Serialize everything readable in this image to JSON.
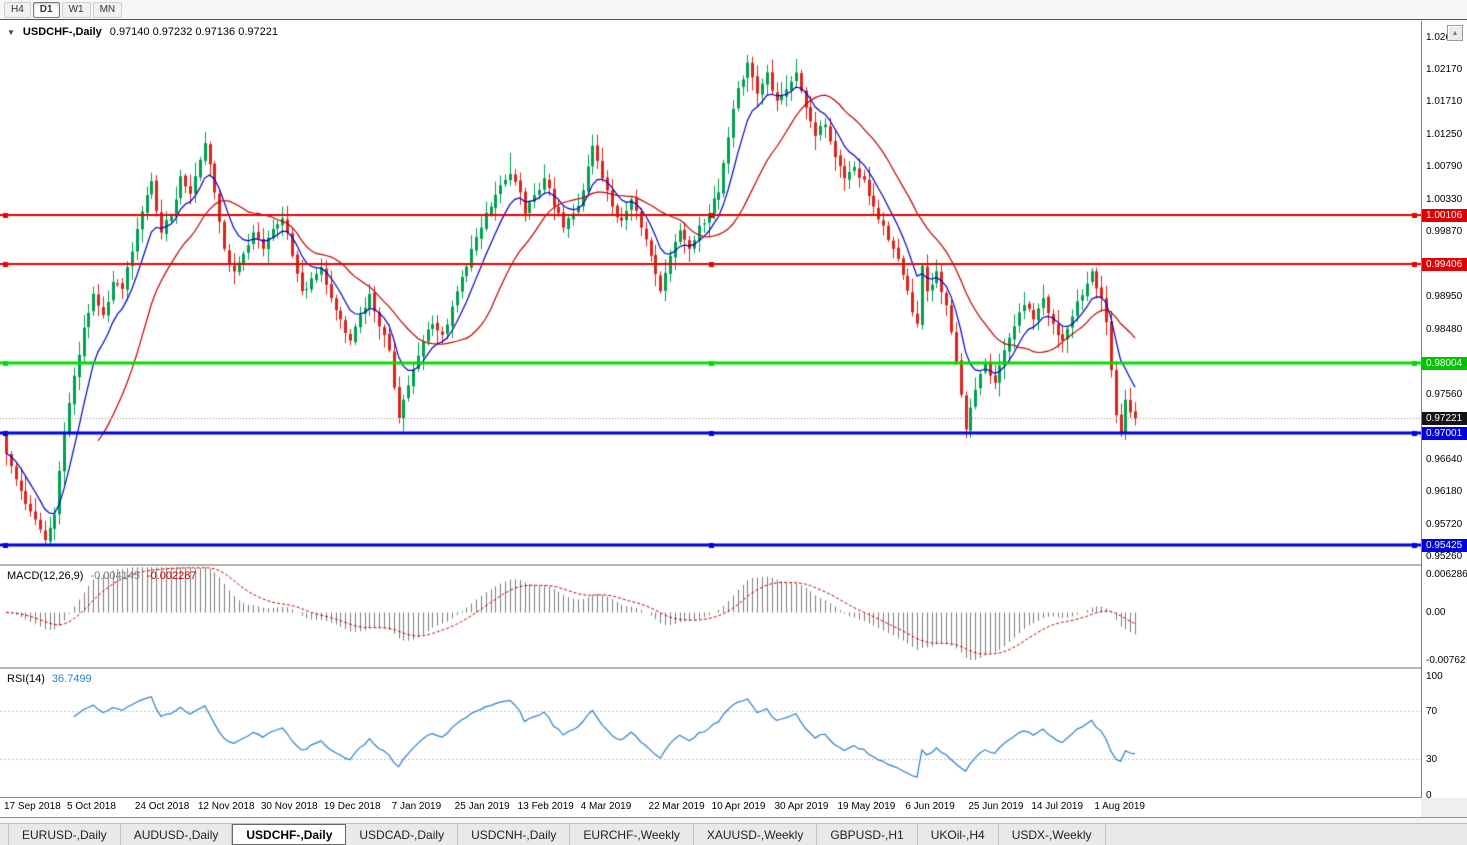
{
  "toolbar": {
    "buttons": [
      {
        "label": "H4",
        "active": false
      },
      {
        "label": "D1",
        "active": true
      },
      {
        "label": "W1",
        "active": false
      },
      {
        "label": "MN",
        "active": false
      }
    ]
  },
  "chart": {
    "title": "USDCHF-,Daily",
    "ohlc_text": "0.97140 0.97232 0.97136 0.97221",
    "collapse_icon": "▼"
  },
  "price_axis": {
    "ticks": [
      {
        "text": "1.02630",
        "price": 1.0263
      },
      {
        "text": "1.02170",
        "price": 1.0217
      },
      {
        "text": "1.01710",
        "price": 1.0171
      },
      {
        "text": "1.01250",
        "price": 1.0125
      },
      {
        "text": "1.00790",
        "price": 1.0079
      },
      {
        "text": "1.00330",
        "price": 1.0033
      },
      {
        "text": "0.99870",
        "price": 0.9987
      },
      {
        "text": "0.98950",
        "price": 0.9895
      },
      {
        "text": "0.98480",
        "price": 0.9848
      },
      {
        "text": "0.97560",
        "price": 0.9756
      },
      {
        "text": "0.96640",
        "price": 0.9664
      },
      {
        "text": "0.96180",
        "price": 0.9618
      },
      {
        "text": "0.95720",
        "price": 0.9572
      },
      {
        "text": "0.95260",
        "price": 0.9526
      }
    ],
    "badges": [
      {
        "text": "1.00106",
        "price": 1.00106,
        "bg": "#e00000"
      },
      {
        "text": "0.99406",
        "price": 0.99406,
        "bg": "#e00000"
      },
      {
        "text": "0.98004",
        "price": 0.98004,
        "bg": "#00c300"
      },
      {
        "text": "0.97221",
        "price": 0.97221,
        "bg": "#141414"
      },
      {
        "text": "0.97001",
        "price": 0.97001,
        "bg": "#0000dd"
      },
      {
        "text": "0.95425",
        "price": 0.95425,
        "bg": "#0000dd"
      }
    ]
  },
  "macd_panel": {
    "label": "MACD(12,26,9)",
    "value_main": "-0.004145",
    "value_signal": "-0.002287",
    "axis": [
      {
        "text": "0.006286",
        "value": 0.006286
      },
      {
        "text": "0.00",
        "value": 0
      },
      {
        "text": "-0.00762",
        "value": -0.00762
      }
    ]
  },
  "rsi_panel": {
    "label": "RSI(14)",
    "value": "36.7499",
    "axis": [
      {
        "text": "100",
        "value": 100
      },
      {
        "text": "70",
        "value": 70
      },
      {
        "text": "30",
        "value": 30
      },
      {
        "text": "0",
        "value": 0
      }
    ]
  },
  "date_axis": {
    "labels": [
      "17 Sep 2018",
      "5 Oct 2018",
      "24 Oct 2018",
      "12 Nov 2018",
      "30 Nov 2018",
      "19 Dec 2018",
      "7 Jan 2019",
      "25 Jan 2019",
      "13 Feb 2019",
      "4 Mar 2019",
      "22 Mar 2019",
      "10 Apr 2019",
      "30 Apr 2019",
      "19 May 2019",
      "6 Jun 2019",
      "25 Jun 2019",
      "14 Jul 2019",
      "1 Aug 2019"
    ]
  },
  "tabs": {
    "active_index": 2,
    "items": [
      "EURUSD-,Daily",
      "AUDUSD-,Daily",
      "USDCHF-,Daily",
      "USDCAD-,Daily",
      "USDCNH-,Daily",
      "EURCHF-,Weekly",
      "XAUUSD-,Weekly",
      "GBPUSD-,H1",
      "UKOil-,H4",
      "USDX-,Weekly"
    ]
  },
  "chart_data": {
    "type": "candlestick",
    "symbol": "USDCHF-",
    "timeframe": "Daily",
    "current_ohlc": {
      "open": 0.9714,
      "high": 0.97232,
      "low": 0.97136,
      "close": 0.97221
    },
    "x_range": [
      "17 Sep 2018",
      "9 Aug 2019"
    ],
    "price_max": 1.0285,
    "price_min": 0.9515,
    "candles": 234,
    "x0": 6,
    "step": 4.846,
    "seed": 11,
    "noise": 0.0013,
    "bull_color": "#00a050",
    "bear_color": "#d9251d",
    "ma_fast": {
      "period": 8,
      "type": "ema",
      "color": "#0000c8"
    },
    "ma_slow": {
      "period": 20,
      "type": "sma",
      "color": "#c00000"
    },
    "bid_line": {
      "price": 0.97221,
      "color": "#8a8a8a"
    },
    "hlines": [
      {
        "price": 1.00106,
        "color": "#ee0000",
        "width": 2
      },
      {
        "price": 0.99406,
        "color": "#ee0000",
        "width": 2
      },
      {
        "price": 0.98004,
        "color": "#00dd00",
        "width": 3
      },
      {
        "price": 0.97001,
        "color": "#0000ee",
        "width": 3
      },
      {
        "price": 0.95425,
        "color": "#0000ee",
        "width": 3
      }
    ],
    "close_waypoints": [
      [
        0,
        0.9672
      ],
      [
        2,
        0.9635
      ],
      [
        4,
        0.96
      ],
      [
        6,
        0.9578
      ],
      [
        8,
        0.9549
      ],
      [
        10,
        0.9585
      ],
      [
        12,
        0.97
      ],
      [
        14,
        0.9782
      ],
      [
        16,
        0.985
      ],
      [
        18,
        0.9898
      ],
      [
        20,
        0.9868
      ],
      [
        22,
        0.9915
      ],
      [
        24,
        0.9905
      ],
      [
        26,
        0.9958
      ],
      [
        28,
        1.0015
      ],
      [
        30,
        1.0058
      ],
      [
        32,
        0.9985
      ],
      [
        34,
        1.0008
      ],
      [
        36,
        1.0065
      ],
      [
        38,
        1.004
      ],
      [
        40,
        1.0088
      ],
      [
        41,
        1.0112
      ],
      [
        43,
        1.0042
      ],
      [
        45,
        0.9962
      ],
      [
        47,
        0.993
      ],
      [
        49,
        0.9955
      ],
      [
        51,
        0.9985
      ],
      [
        53,
        0.9962
      ],
      [
        55,
        0.999
      ],
      [
        57,
        1.0005
      ],
      [
        59,
        0.9952
      ],
      [
        61,
        0.9902
      ],
      [
        63,
        0.992
      ],
      [
        65,
        0.9935
      ],
      [
        67,
        0.9892
      ],
      [
        69,
        0.9862
      ],
      [
        71,
        0.9832
      ],
      [
        73,
        0.9868
      ],
      [
        75,
        0.9898
      ],
      [
        77,
        0.9852
      ],
      [
        79,
        0.9818
      ],
      [
        80,
        0.9765
      ],
      [
        81,
        0.9722
      ],
      [
        82,
        0.9748
      ],
      [
        84,
        0.979
      ],
      [
        86,
        0.983
      ],
      [
        88,
        0.9855
      ],
      [
        90,
        0.984
      ],
      [
        92,
        0.988
      ],
      [
        94,
        0.9922
      ],
      [
        96,
        0.9962
      ],
      [
        98,
        0.9992
      ],
      [
        100,
        1.0022
      ],
      [
        102,
        1.0052
      ],
      [
        104,
        1.0068
      ],
      [
        106,
        1.0042
      ],
      [
        107,
        1.0012
      ],
      [
        109,
        1.0038
      ],
      [
        111,
        1.0062
      ],
      [
        113,
        1.0022
      ],
      [
        115,
        0.9992
      ],
      [
        117,
        1.0012
      ],
      [
        119,
        1.0045
      ],
      [
        121,
        1.0108
      ],
      [
        123,
        1.0062
      ],
      [
        125,
        1.0022
      ],
      [
        127,
        1.0002
      ],
      [
        129,
        1.0032
      ],
      [
        131,
        0.9992
      ],
      [
        133,
        0.9952
      ],
      [
        135,
        0.9902
      ],
      [
        137,
        0.9952
      ],
      [
        139,
        0.9988
      ],
      [
        141,
        0.9962
      ],
      [
        143,
        0.9995
      ],
      [
        145,
        1.0012
      ],
      [
        147,
        1.0042
      ],
      [
        149,
        1.012
      ],
      [
        151,
        1.019
      ],
      [
        153,
        1.0226
      ],
      [
        155,
        1.0182
      ],
      [
        157,
        1.0212
      ],
      [
        159,
        1.0172
      ],
      [
        161,
        1.0188
      ],
      [
        163,
        1.0212
      ],
      [
        165,
        1.0162
      ],
      [
        167,
        1.0122
      ],
      [
        169,
        1.0138
      ],
      [
        171,
        1.0092
      ],
      [
        173,
        1.0062
      ],
      [
        175,
        1.0078
      ],
      [
        177,
        1.006
      ],
      [
        179,
        1.0022
      ],
      [
        181,
        0.9995
      ],
      [
        183,
        0.9962
      ],
      [
        185,
        0.9925
      ],
      [
        187,
        0.9872
      ],
      [
        188,
        0.9856
      ],
      [
        189,
        0.9938
      ],
      [
        190,
        0.9902
      ],
      [
        192,
        0.993
      ],
      [
        194,
        0.9882
      ],
      [
        196,
        0.9802
      ],
      [
        198,
        0.9706
      ],
      [
        200,
        0.9762
      ],
      [
        202,
        0.98
      ],
      [
        204,
        0.9772
      ],
      [
        206,
        0.9818
      ],
      [
        208,
        0.9852
      ],
      [
        210,
        0.9882
      ],
      [
        212,
        0.9862
      ],
      [
        214,
        0.9892
      ],
      [
        216,
        0.9856
      ],
      [
        218,
        0.9832
      ],
      [
        220,
        0.9866
      ],
      [
        222,
        0.9896
      ],
      [
        224,
        0.993
      ],
      [
        226,
        0.9892
      ],
      [
        227,
        0.9858
      ],
      [
        228,
        0.979
      ],
      [
        229,
        0.9726
      ],
      [
        230,
        0.9702
      ],
      [
        231,
        0.9748
      ],
      [
        232,
        0.973
      ],
      [
        233,
        0.97221
      ]
    ],
    "wick_overrides": [
      [
        8,
        "low",
        0.95425
      ],
      [
        41,
        "high",
        1.0128
      ],
      [
        81,
        "low",
        0.9714
      ],
      [
        104,
        "high",
        1.0098
      ],
      [
        121,
        "high",
        1.0124
      ],
      [
        153,
        "high",
        1.0237
      ],
      [
        189,
        "high",
        0.9942
      ],
      [
        198,
        "low",
        0.9693
      ],
      [
        230,
        "low",
        0.9695
      ]
    ],
    "date_tick_indices": [
      0,
      13,
      27,
      40,
      53,
      66,
      80,
      93,
      106,
      119,
      133,
      146,
      159,
      172,
      186,
      199,
      212,
      225
    ],
    "macd": {
      "fast": 12,
      "slow": 26,
      "signal": 9,
      "max": 0.0075,
      "min": -0.0088,
      "hist_color": "#7d7d7d",
      "signal_color": "#cc0000",
      "current_main": -0.004145,
      "current_signal": -0.002287
    },
    "rsi": {
      "period": 14,
      "levels": [
        70,
        30
      ],
      "color": "#2e7fd0",
      "level_color": "#c4c4c4",
      "max": 105.5,
      "min": -2.0,
      "current": 36.7499
    }
  }
}
